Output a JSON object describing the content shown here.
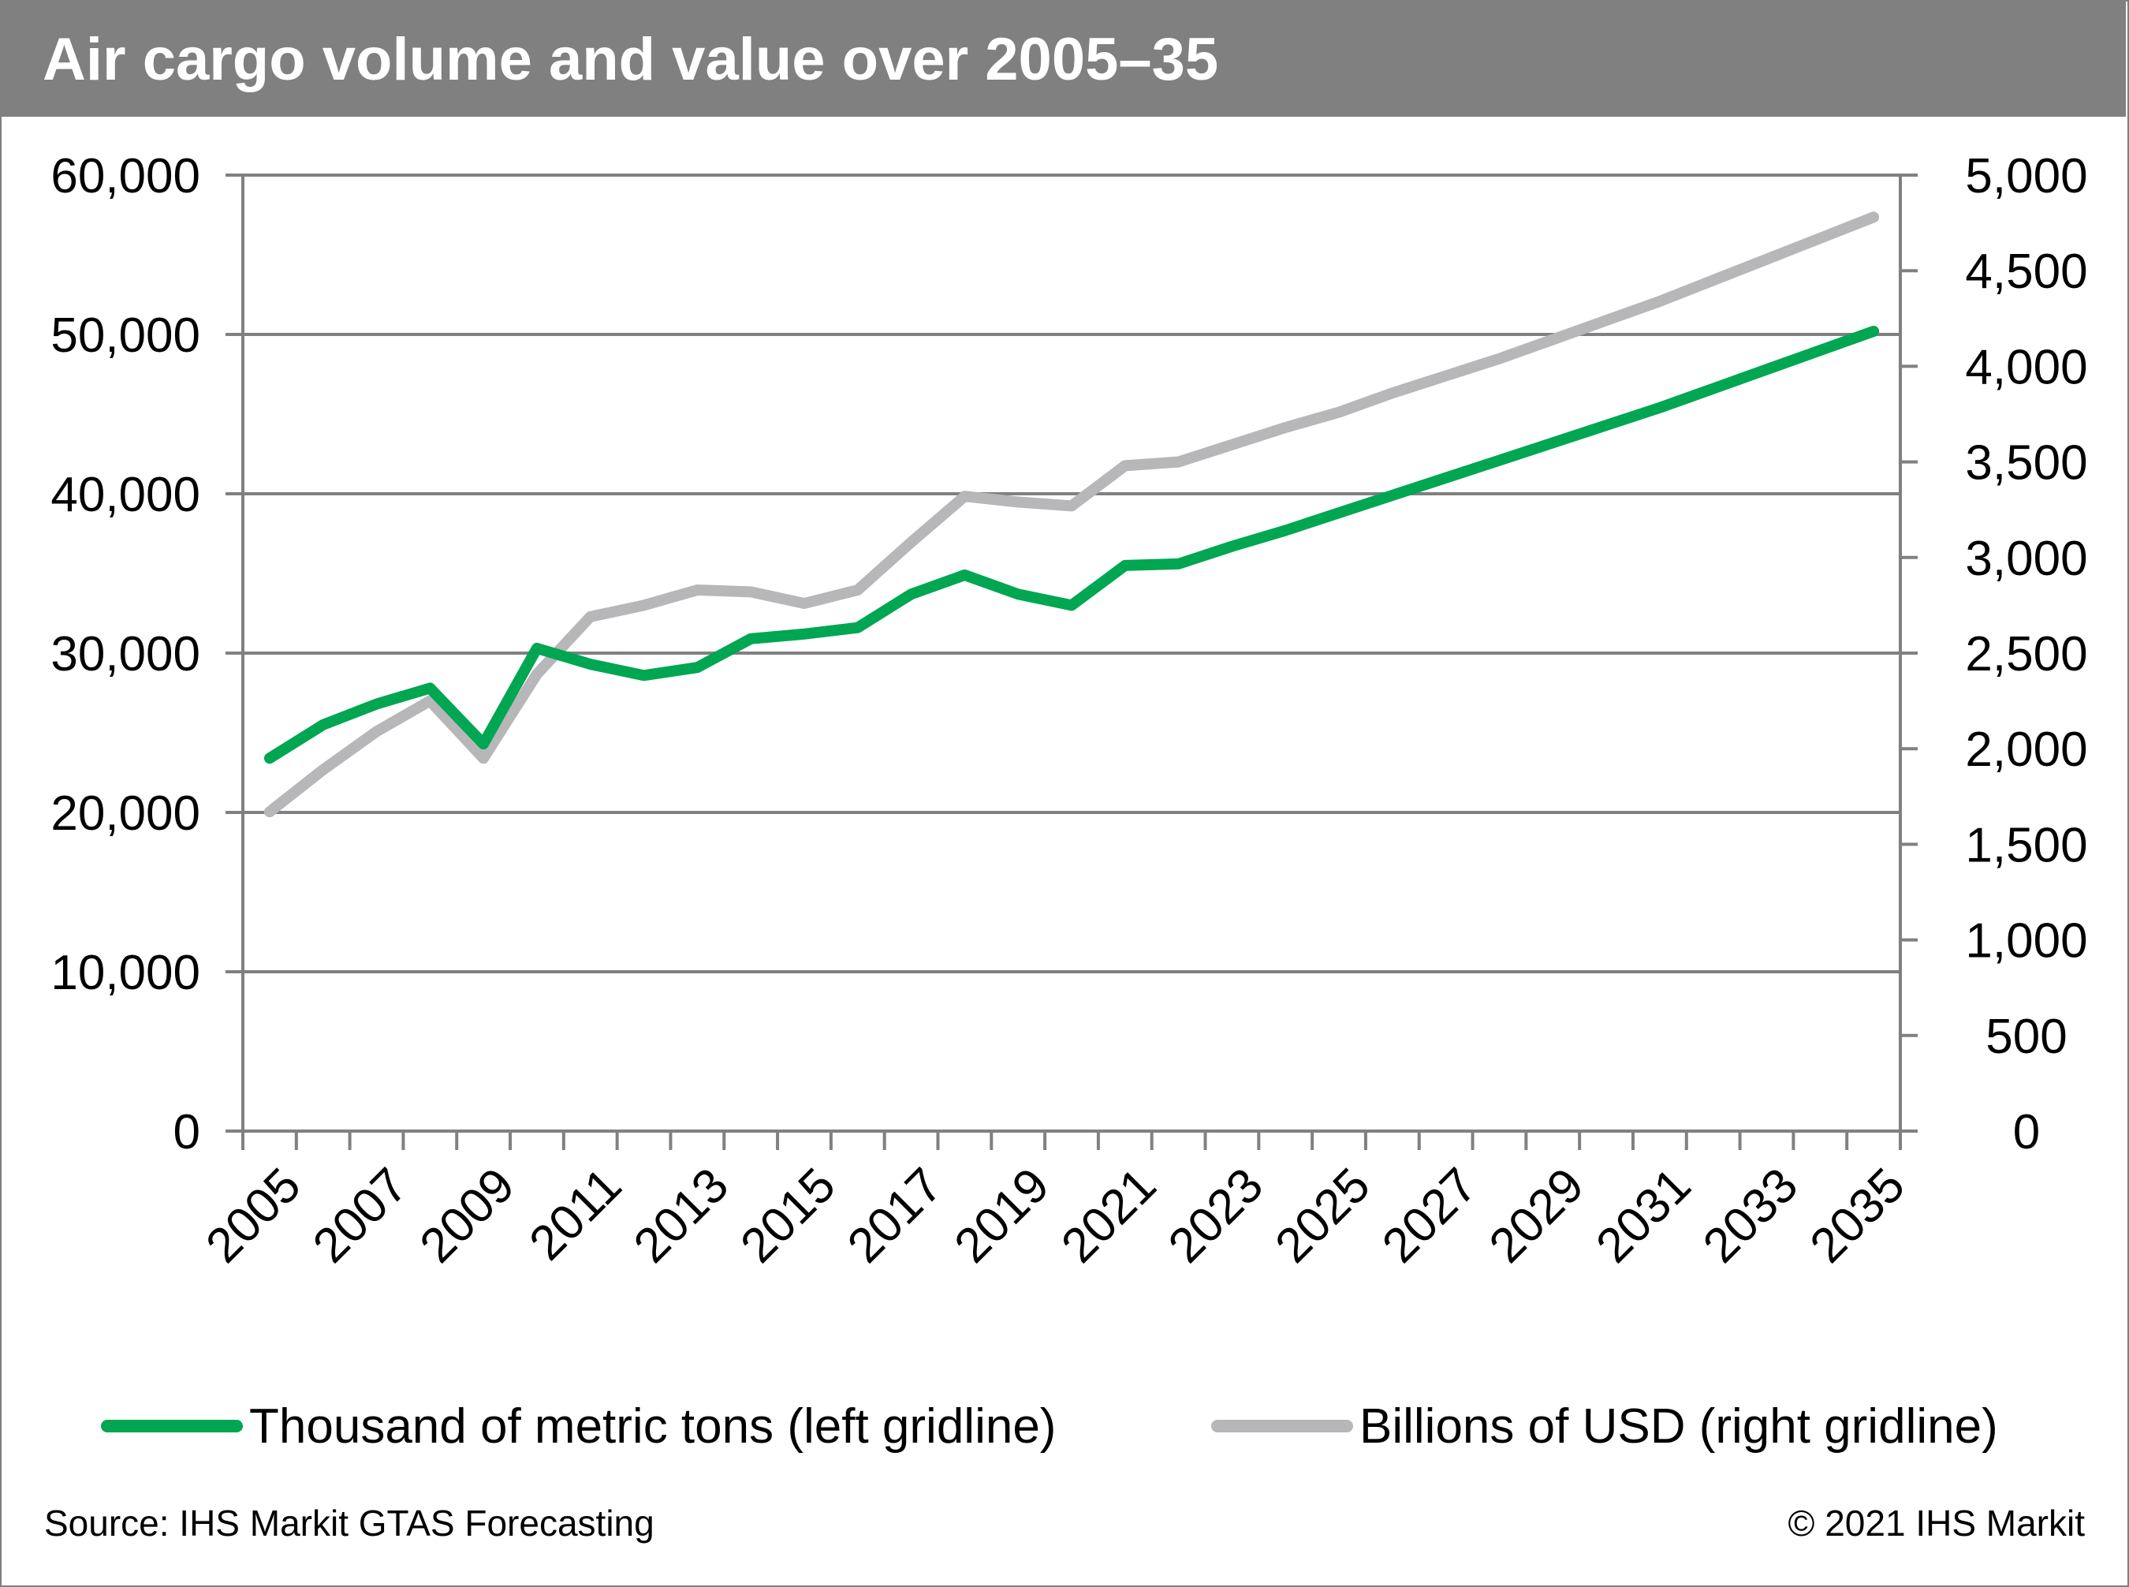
{
  "title": "Air cargo volume and value over 2005–35",
  "colors": {
    "volume": "#00a651",
    "value": "#b7b7b9",
    "title_bar": "#808080",
    "grid": "#808080"
  },
  "legend": {
    "volume_label": "Thousand of metric tons (left gridline)",
    "value_label": "Billions of USD (right gridline)"
  },
  "source": "Source: IHS Markit GTAS Forecasting",
  "copyright": "© 2021 IHS Markit",
  "chart_data": {
    "type": "line",
    "x": [
      2005,
      2006,
      2007,
      2008,
      2009,
      2010,
      2011,
      2012,
      2013,
      2014,
      2015,
      2016,
      2017,
      2018,
      2019,
      2020,
      2021,
      2022,
      2023,
      2024,
      2025,
      2026,
      2027,
      2028,
      2029,
      2030,
      2031,
      2032,
      2033,
      2034,
      2035
    ],
    "x_tick_labels": [
      "2005",
      "2007",
      "2009",
      "2011",
      "2013",
      "2015",
      "2017",
      "2019",
      "2021",
      "2023",
      "2025",
      "2027",
      "2029",
      "2031",
      "2033",
      "2035"
    ],
    "y_left": {
      "range": [
        0,
        60000
      ],
      "ticks": [
        0,
        10000,
        20000,
        30000,
        40000,
        50000,
        60000
      ],
      "tick_labels": [
        "0",
        "10,000",
        "20,000",
        "30,000",
        "40,000",
        "50,000",
        "60,000"
      ]
    },
    "y_right": {
      "range": [
        0,
        5000
      ],
      "ticks": [
        0,
        500,
        1000,
        1500,
        2000,
        2500,
        3000,
        3500,
        4000,
        4500,
        5000
      ],
      "tick_labels": [
        "0",
        "500",
        "1,000",
        "1,500",
        "2,000",
        "2,500",
        "3,000",
        "3,500",
        "4,000",
        "4,500",
        "5,000"
      ]
    },
    "grid": true,
    "legend_position": "bottom",
    "series": [
      {
        "name": "Thousand of metric tons (left gridline)",
        "axis": "left",
        "values": [
          23400,
          25500,
          26800,
          27800,
          24300,
          30300,
          29300,
          28600,
          29100,
          30900,
          31200,
          31600,
          33700,
          34900,
          33700,
          33000,
          35500,
          35600,
          36700,
          37700,
          38800,
          39900,
          41000,
          42100,
          43200,
          44300,
          45400,
          46600,
          47800,
          49000,
          50200
        ]
      },
      {
        "name": "Billions of USD (right gridline)",
        "axis": "right",
        "values": [
          1670,
          1890,
          2090,
          2250,
          1950,
          2390,
          2690,
          2750,
          2830,
          2820,
          2760,
          2830,
          3080,
          3320,
          3290,
          3270,
          3480,
          3500,
          3590,
          3680,
          3760,
          3860,
          3950,
          4040,
          4140,
          4240,
          4340,
          4450,
          4560,
          4670,
          4780
        ]
      }
    ]
  }
}
